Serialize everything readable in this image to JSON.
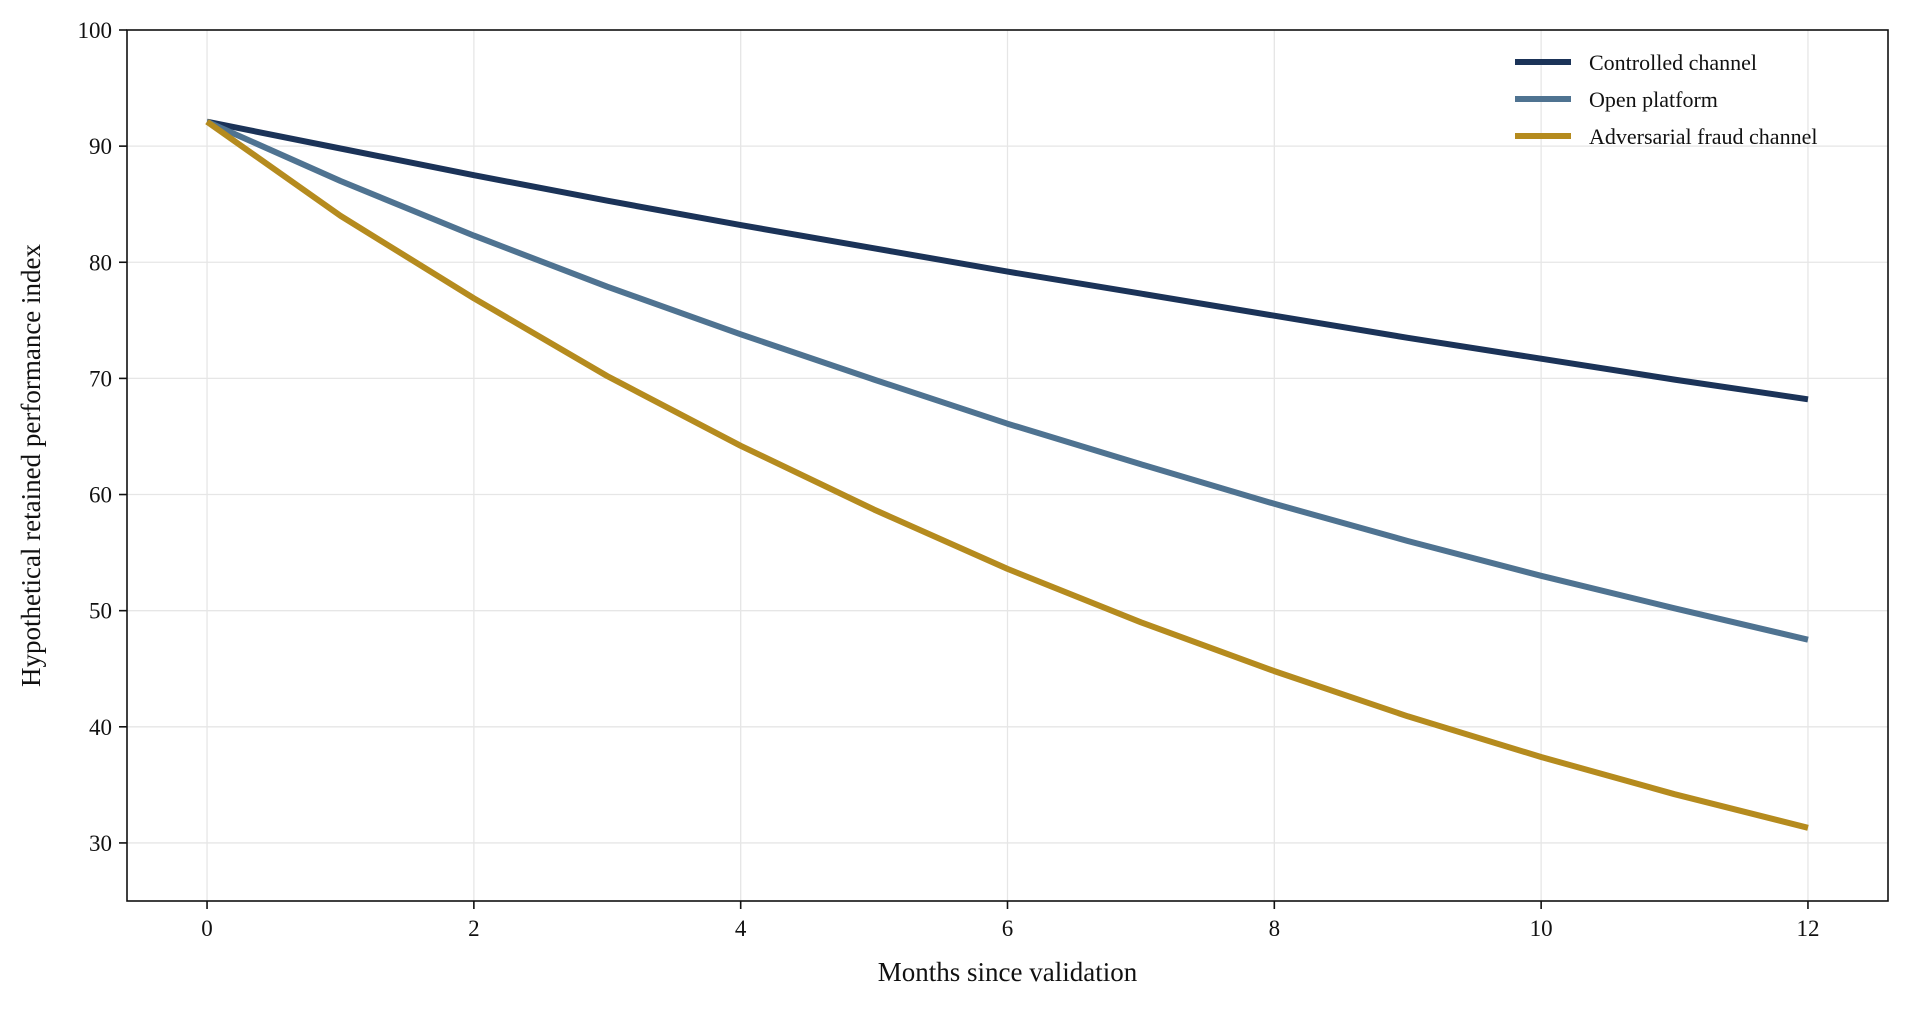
{
  "chart_data": {
    "type": "line",
    "title": "",
    "xlabel": "Months since validation",
    "ylabel": "Hypothetical retained performance index",
    "xlim": [
      -0.6,
      12.6
    ],
    "ylim": [
      25,
      100
    ],
    "x_ticks": [
      0,
      2,
      4,
      6,
      8,
      10,
      12
    ],
    "y_ticks": [
      30,
      40,
      50,
      60,
      70,
      80,
      90,
      100
    ],
    "grid": true,
    "legend_position": "top-right",
    "x": [
      0,
      1,
      2,
      3,
      4,
      5,
      6,
      7,
      8,
      9,
      10,
      11,
      12
    ],
    "series": [
      {
        "name": "Controlled channel",
        "color": "#1b3358",
        "values": [
          92.1,
          89.8,
          87.5,
          85.3,
          83.2,
          81.2,
          79.2,
          77.3,
          75.4,
          73.5,
          71.7,
          69.9,
          68.2
        ]
      },
      {
        "name": "Open platform",
        "color": "#4f7391",
        "values": [
          92.1,
          87.0,
          82.3,
          77.9,
          73.8,
          69.9,
          66.1,
          62.6,
          59.2,
          56.0,
          53.0,
          50.2,
          47.5
        ]
      },
      {
        "name": "Adversarial fraud channel",
        "color": "#b58b1e",
        "values": [
          92.1,
          84.0,
          76.9,
          70.2,
          64.2,
          58.7,
          53.6,
          49.0,
          44.8,
          40.9,
          37.4,
          34.2,
          31.3
        ]
      }
    ]
  }
}
